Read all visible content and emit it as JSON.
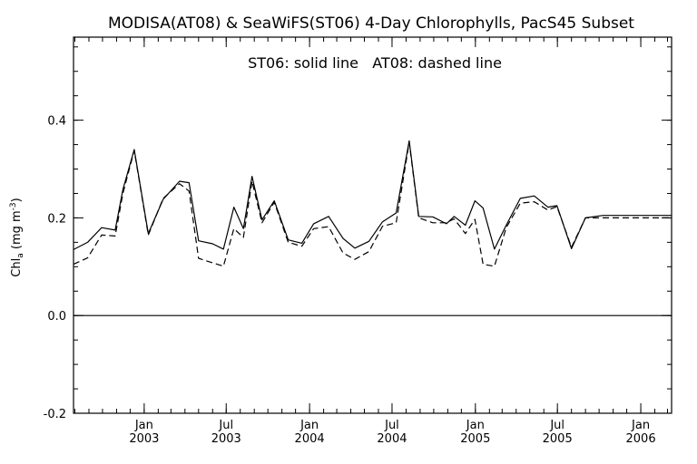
{
  "chart_data": {
    "type": "line",
    "title": "MODISA(AT08) & SeaWiFS(ST06) 4-Day Chlorophylls, PacS45 Subset",
    "annotation": "ST06: solid line   AT08: dashed line",
    "ylabel": {
      "main": "Chl",
      "subscript": "a",
      "units_open": " (mg m",
      "units_sup": "-3",
      "units_close": ")"
    },
    "xlim": [
      "2002-07-29",
      "2006-03-10"
    ],
    "ylim": [
      -0.2,
      0.57
    ],
    "y_ticks": [
      {
        "value": -0.2,
        "label": "-0.2"
      },
      {
        "value": 0.0,
        "label": "0.0"
      },
      {
        "value": 0.2,
        "label": "0.2"
      },
      {
        "value": 0.4,
        "label": "0.4"
      }
    ],
    "y_minor_step": 0.05,
    "x_ticks": [
      {
        "date": "2003-01-01",
        "month": "Jan",
        "year": "2003"
      },
      {
        "date": "2003-07-01",
        "month": "Jul",
        "year": "2003"
      },
      {
        "date": "2004-01-01",
        "month": "Jan",
        "year": "2004"
      },
      {
        "date": "2004-07-01",
        "month": "Jul",
        "year": "2004"
      },
      {
        "date": "2005-01-01",
        "month": "Jan",
        "year": "2005"
      },
      {
        "date": "2005-07-01",
        "month": "Jul",
        "year": "2005"
      },
      {
        "date": "2006-01-01",
        "month": "Jan",
        "year": "2006"
      }
    ],
    "x_minor_months": 1,
    "reference_line": 0.0,
    "series": [
      {
        "name": "ST06",
        "style": "solid",
        "color": "#000000",
        "x": [
          "2002-07-29",
          "2002-08-29",
          "2002-09-29",
          "2002-10-29",
          "2002-11-15",
          "2002-12-10",
          "2003-01-10",
          "2003-02-12",
          "2003-03-20",
          "2003-04-10",
          "2003-05-01",
          "2003-06-01",
          "2003-06-25",
          "2003-07-18",
          "2003-08-08",
          "2003-08-27",
          "2003-09-18",
          "2003-10-15",
          "2003-11-15",
          "2003-12-15",
          "2004-01-10",
          "2004-02-12",
          "2004-03-15",
          "2004-04-10",
          "2004-05-11",
          "2004-06-10",
          "2004-07-10",
          "2004-08-08",
          "2004-08-29",
          "2004-09-29",
          "2004-10-29",
          "2004-11-15",
          "2004-12-10",
          "2004-12-31",
          "2005-01-18",
          "2005-02-12",
          "2005-03-10",
          "2005-04-10",
          "2005-05-11",
          "2005-06-10",
          "2005-06-30",
          "2005-08-01",
          "2005-09-01",
          "2005-10-10",
          "2005-11-10",
          "2005-12-01",
          "2005-12-26",
          "2006-01-01",
          "2006-01-29",
          "2006-02-25",
          "2006-03-10"
        ],
        "y": [
          0.135,
          0.15,
          0.18,
          0.175,
          0.258,
          0.34,
          0.168,
          0.238,
          0.275,
          0.272,
          0.153,
          0.147,
          0.136,
          0.222,
          0.178,
          0.285,
          0.196,
          0.235,
          0.155,
          0.148,
          0.188,
          0.203,
          0.158,
          0.138,
          0.152,
          0.192,
          0.21,
          0.358,
          0.203,
          0.202,
          0.188,
          0.203,
          0.185,
          0.235,
          0.22,
          0.136,
          0.185,
          0.24,
          0.245,
          0.222,
          0.225,
          0.137,
          0.2,
          0.205,
          0.205,
          0.205,
          0.205,
          0.205,
          0.205,
          0.205,
          0.205
        ]
      },
      {
        "name": "AT08",
        "style": "dashed",
        "color": "#000000",
        "x": [
          "2002-07-29",
          "2002-08-29",
          "2002-09-29",
          "2002-10-29",
          "2002-11-15",
          "2002-12-10",
          "2003-01-10",
          "2003-02-12",
          "2003-03-20",
          "2003-04-10",
          "2003-05-01",
          "2003-06-01",
          "2003-06-25",
          "2003-07-18",
          "2003-08-08",
          "2003-08-27",
          "2003-09-18",
          "2003-10-15",
          "2003-11-15",
          "2003-12-15",
          "2004-01-10",
          "2004-02-12",
          "2004-03-15",
          "2004-04-10",
          "2004-05-11",
          "2004-06-10",
          "2004-07-10",
          "2004-08-08",
          "2004-08-29",
          "2004-09-29",
          "2004-10-29",
          "2004-11-15",
          "2004-12-10",
          "2004-12-31",
          "2005-01-18",
          "2005-02-12",
          "2005-03-10",
          "2005-04-10",
          "2005-05-11",
          "2005-06-10",
          "2005-06-30",
          "2005-08-01",
          "2005-09-01",
          "2005-10-10",
          "2005-11-10",
          "2005-12-01",
          "2005-12-26",
          "2006-01-01",
          "2006-01-29",
          "2006-02-25",
          "2006-03-10"
        ],
        "y": [
          0.105,
          0.118,
          0.165,
          0.163,
          0.25,
          0.338,
          0.165,
          0.24,
          0.27,
          0.255,
          0.117,
          0.108,
          0.101,
          0.178,
          0.16,
          0.275,
          0.19,
          0.232,
          0.15,
          0.142,
          0.178,
          0.182,
          0.128,
          0.115,
          0.131,
          0.183,
          0.19,
          0.355,
          0.2,
          0.19,
          0.19,
          0.198,
          0.168,
          0.197,
          0.105,
          0.101,
          0.18,
          0.23,
          0.233,
          0.216,
          0.223,
          0.14,
          0.2,
          0.2,
          0.2,
          0.2,
          0.2,
          0.2,
          0.2,
          0.2,
          0.2
        ]
      }
    ]
  }
}
